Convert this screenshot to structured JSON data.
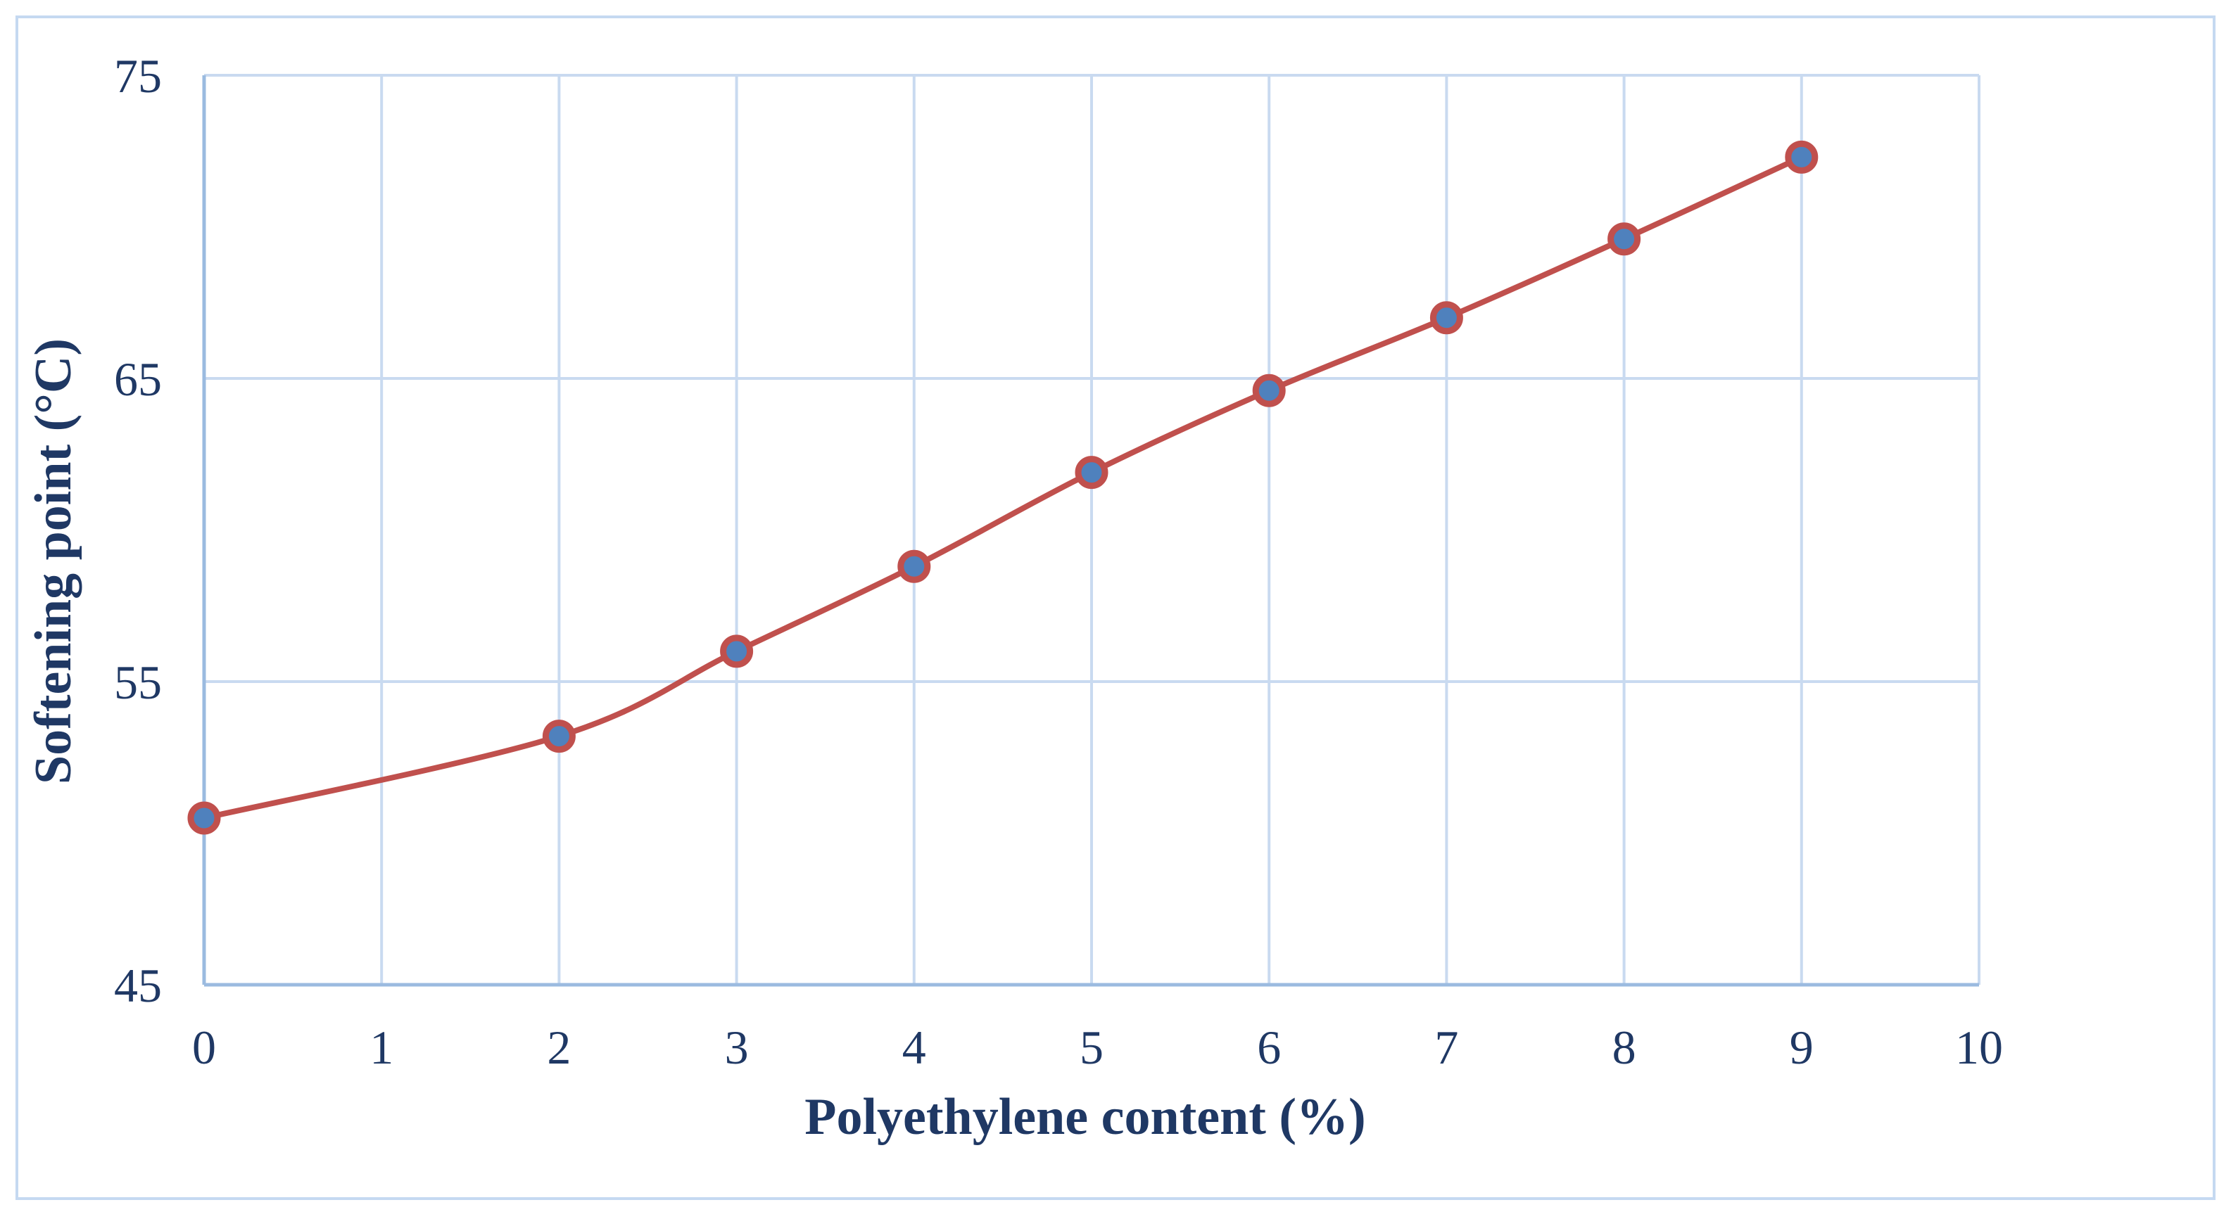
{
  "chart_data": {
    "type": "line",
    "xlabel": "Polyethylene content (%)",
    "ylabel": "Softening point (°C)",
    "xlim": [
      0,
      10
    ],
    "ylim": [
      45,
      75
    ],
    "x_ticks": [
      "0",
      "1",
      "2",
      "3",
      "4",
      "5",
      "6",
      "7",
      "8",
      "9",
      "10"
    ],
    "y_ticks": [
      "45",
      "55",
      "65",
      "75"
    ],
    "grid": true,
    "smooth": true,
    "series": [
      {
        "x": [
          0,
          2,
          3,
          4,
          5,
          6,
          7,
          8,
          9
        ],
        "y": [
          50.5,
          53.2,
          56.0,
          58.8,
          61.9,
          64.6,
          67.0,
          69.6,
          72.3
        ]
      }
    ],
    "colors": {
      "line": "#c0504d",
      "marker_fill": "#4f81bd",
      "marker_edge": "#c0504d",
      "grid": "#c9daf0",
      "axis": "#9bbbe0",
      "frame": "#c5d9f1",
      "text": "#1f3864"
    }
  }
}
